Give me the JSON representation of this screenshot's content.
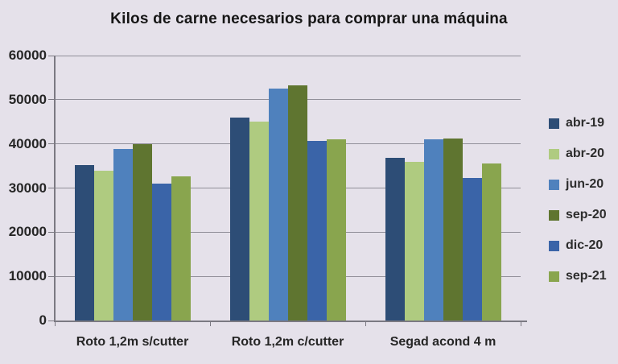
{
  "chart_data": {
    "type": "bar",
    "title": "Kilos de carne necesarios para comprar una máquina",
    "categories": [
      "Roto 1,2m s/cutter",
      "Roto 1,2m c/cutter",
      "Segad acond 4 m"
    ],
    "series": [
      {
        "name": "abr-19",
        "color": "#2d4d76",
        "values": [
          35200,
          45900,
          36800
        ]
      },
      {
        "name": "abr-20",
        "color": "#afcb80",
        "values": [
          34000,
          45000,
          36000
        ]
      },
      {
        "name": "jun-20",
        "color": "#4f81bd",
        "values": [
          38800,
          52500,
          41000
        ]
      },
      {
        "name": "sep-20",
        "color": "#5f7530",
        "values": [
          40000,
          53300,
          41200
        ]
      },
      {
        "name": "dic-20",
        "color": "#3a64a8",
        "values": [
          31000,
          40700,
          32300
        ]
      },
      {
        "name": "sep-21",
        "color": "#89a54e",
        "values": [
          32700,
          41100,
          35500
        ]
      }
    ],
    "xlabel": "",
    "ylabel": "",
    "ylim": [
      0,
      60000
    ],
    "ytick_interval": 10000,
    "yticks": [
      "0",
      "10000",
      "20000",
      "30000",
      "40000",
      "50000",
      "60000"
    ],
    "grid": "horizontal",
    "legend_position": "right"
  },
  "colors": {
    "background": "#e5e1ea",
    "gridline": "#918f99",
    "axis": "#7b7982",
    "text": "#262626"
  }
}
